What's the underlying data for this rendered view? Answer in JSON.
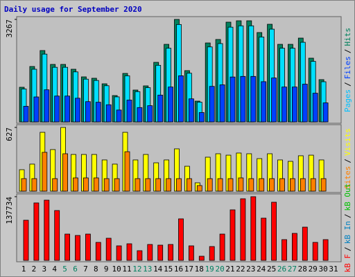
{
  "chart_data": {
    "type": "bar",
    "title": "Daily usage for September 2020",
    "title_color": "#0000c0",
    "separator": "/",
    "categories": [
      1,
      2,
      3,
      4,
      5,
      6,
      7,
      8,
      9,
      10,
      11,
      12,
      13,
      14,
      15,
      16,
      17,
      18,
      19,
      20,
      21,
      22,
      23,
      24,
      25,
      26,
      27,
      28,
      29,
      30,
      31
    ],
    "weekends": [
      5,
      6,
      12,
      13,
      19,
      20,
      26,
      27
    ],
    "weekend_color": "#008060",
    "panels": [
      {
        "ylim": [
          0,
          3267
        ],
        "yticks": [
          3267
        ],
        "series": [
          {
            "name": "Pages",
            "color": "#0040ff",
            "label_color": "#00c0ff",
            "values": [
              497,
              795,
              1023,
              824,
              824,
              755,
              646,
              626,
              546,
              378,
              695,
              457,
              517,
              854,
              1112,
              1470,
              735,
              298,
              1132,
              1182,
              1431,
              1450,
              1450,
              1282,
              1400,
              1112,
              1112,
              1202,
              914,
              606,
              null
            ]
          },
          {
            "name": "Files",
            "color": "#00e0ff",
            "label_color": "#0040ff",
            "values": [
              1049,
              1678,
              2160,
              1740,
              1740,
              1594,
              1363,
              1321,
              1153,
              797,
              1468,
              964,
              1091,
              1803,
              2348,
              3104,
              1552,
              629,
              2390,
              2496,
              3020,
              3062,
              3062,
              2706,
              2956,
              2348,
              2348,
              2537,
              1929,
              1280,
              null
            ]
          },
          {
            "name": "Hits",
            "color": "#00805c",
            "label_color": "#00805c",
            "values": [
              1104,
              1766,
              2274,
              1832,
              1832,
              1678,
              1435,
              1391,
              1214,
              839,
              1545,
              1015,
              1148,
              1898,
              2472,
              3267,
              1634,
              662,
              2516,
              2627,
              3179,
              3223,
              3223,
              2848,
              3112,
              2472,
              2472,
              2671,
              2031,
              1347,
              null
            ]
          }
        ]
      },
      {
        "ylim": [
          0,
          627
        ],
        "yticks": [
          627
        ],
        "series": [
          {
            "name": "Sites",
            "color": "#ff8000",
            "label_color": "#ff8000",
            "values": [
              123,
              123,
              382,
              123,
              368,
              130,
              130,
              130,
              123,
              123,
              388,
              123,
              123,
              123,
              123,
              123,
              123,
              55,
              123,
              123,
              123,
              130,
              123,
              123,
              123,
              123,
              123,
              123,
              123,
              123,
              null
            ]
          },
          {
            "name": "Visits",
            "color": "#ffff00",
            "label_color": "#ffff00",
            "values": [
              211,
              266,
              579,
              409,
              627,
              361,
              361,
              361,
              307,
              266,
              579,
              307,
              361,
              279,
              307,
              416,
              245,
              82,
              334,
              368,
              354,
              375,
              368,
              320,
              368,
              307,
              293,
              348,
              354,
              307,
              null
            ]
          }
        ]
      },
      {
        "ylim": [
          0,
          137734
        ],
        "yticks": [
          137734
        ],
        "series": [
          {
            "name": "kB F",
            "color": "#ff0000",
            "label_color": "#ff0000",
            "values": [
              86833,
              124260,
              130248,
              107792,
              56890,
              53896,
              56890,
              38925,
              47907,
              31439,
              35931,
              20960,
              34434,
              32936,
              34434,
              89827,
              31439,
              8983,
              29942,
              56890,
              109290,
              133243,
              137734,
              91324,
              125757,
              44913,
              58387,
              71862,
              38925,
              44913,
              null
            ]
          },
          {
            "name": "kB In",
            "color": "#0080c0",
            "label_color": "#0080c0",
            "values": [
              null,
              null,
              null,
              null,
              null,
              null,
              null,
              null,
              null,
              null,
              null,
              null,
              null,
              null,
              null,
              null,
              null,
              null,
              null,
              null,
              null,
              null,
              null,
              null,
              null,
              null,
              null,
              null,
              null,
              null,
              null
            ]
          },
          {
            "name": "kB Out",
            "color": "#00c000",
            "label_color": "#00c000",
            "values": [
              null,
              null,
              null,
              null,
              null,
              null,
              null,
              null,
              null,
              null,
              null,
              null,
              null,
              null,
              null,
              null,
              null,
              null,
              null,
              null,
              null,
              null,
              null,
              null,
              null,
              null,
              null,
              null,
              null,
              null,
              null
            ]
          }
        ]
      }
    ]
  }
}
